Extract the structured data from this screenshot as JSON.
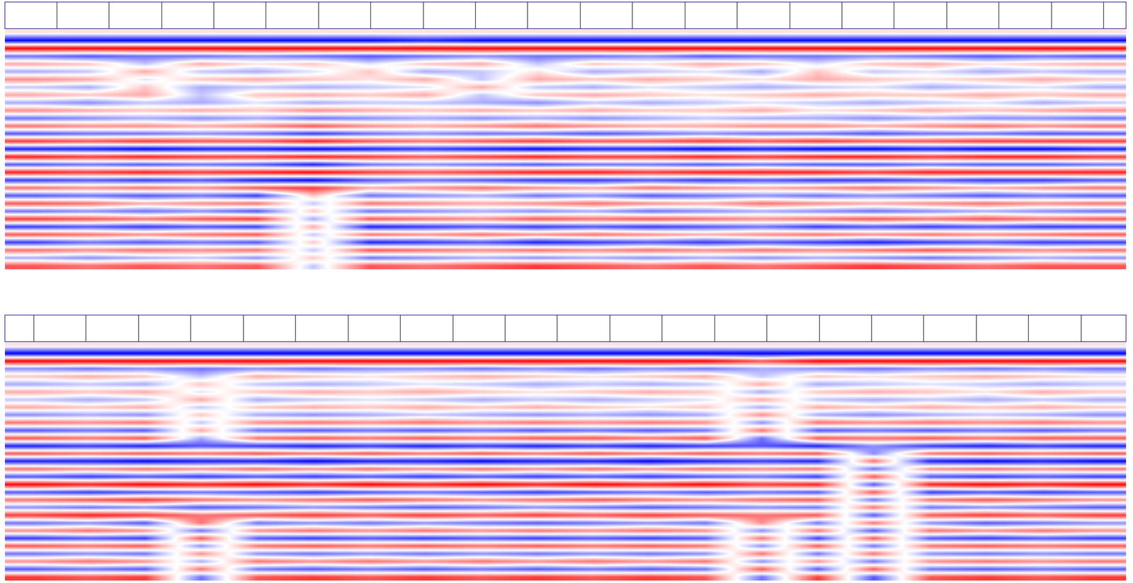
{
  "chart_data": [
    {
      "type": "heatmap",
      "tick_labels": false,
      "xlim": [
        0,
        1551
      ],
      "color_range": [
        -9,
        9
      ],
      "colors": [
        "#0000ff",
        "#ffffff",
        "#ff0000"
      ],
      "markers": [
        72,
        144,
        217,
        289,
        361,
        434,
        506,
        579,
        651,
        723,
        796,
        868,
        941,
        1013,
        1086,
        1158,
        1230,
        1303,
        1375,
        1448,
        1520
      ],
      "z": [
        [
          1,
          1,
          1,
          1,
          1,
          1,
          1,
          1,
          1,
          1,
          1,
          1,
          1,
          1,
          1,
          1,
          1,
          1,
          1,
          1
        ],
        [
          -9,
          -9,
          -9,
          -9,
          -9,
          -9,
          -9,
          -8,
          -9,
          -9,
          -9,
          -9,
          -9,
          -9,
          -9,
          -9,
          -9,
          -9,
          -9,
          -9
        ],
        [
          9,
          9,
          9,
          9,
          9,
          9,
          9,
          9,
          9,
          9,
          9,
          9,
          9,
          9,
          9,
          9,
          9,
          9,
          9,
          9
        ],
        [
          -5,
          -6,
          -5,
          -5,
          -4,
          -5,
          -6,
          -5,
          -4,
          -5,
          -5,
          -4,
          -6,
          -5,
          -5,
          -4,
          -5,
          -6,
          -5,
          -6
        ],
        [
          3,
          2,
          -2,
          3,
          1,
          2,
          -1,
          2,
          3,
          -2,
          2,
          1,
          3,
          2,
          -1,
          2,
          3,
          1,
          2,
          3
        ],
        [
          -3,
          -2,
          3,
          -2,
          -3,
          -1,
          2,
          -3,
          -2,
          1,
          -3,
          -2,
          -1,
          -3,
          2,
          -2,
          -1,
          -3,
          -2,
          -3
        ],
        [
          4,
          3,
          -1,
          2,
          3,
          2,
          1,
          3,
          -2,
          3,
          2,
          3,
          2,
          1,
          3,
          2,
          1,
          2,
          3,
          2
        ],
        [
          -2,
          -3,
          2,
          -3,
          -2,
          -3,
          -2,
          -1,
          3,
          -2,
          -3,
          -1,
          -2,
          -3,
          -2,
          -1,
          -3,
          -2,
          -1,
          -3
        ],
        [
          3,
          2,
          3,
          -2,
          2,
          3,
          2,
          3,
          -2,
          2,
          3,
          2,
          1,
          2,
          3,
          2,
          2,
          3,
          2,
          3
        ],
        [
          -3,
          -4,
          -2,
          -3,
          -1,
          -3,
          -2,
          -2,
          -3,
          -4,
          -2,
          -3,
          -2,
          -1,
          -2,
          -3,
          -2,
          -1,
          -3,
          -2
        ],
        [
          4,
          3,
          2,
          3,
          2,
          4,
          3,
          2,
          3,
          2,
          3,
          2,
          2,
          3,
          1,
          2,
          3,
          2,
          3,
          4
        ],
        [
          -5,
          -4,
          -3,
          -4,
          -3,
          -5,
          -4,
          -3,
          -4,
          -3,
          -4,
          -3,
          -2,
          -3,
          -3,
          -4,
          -3,
          -4,
          -4,
          -5
        ],
        [
          5,
          4,
          4,
          3,
          4,
          6,
          4,
          3,
          4,
          5,
          4,
          3,
          3,
          4,
          4,
          3,
          4,
          5,
          4,
          5
        ],
        [
          -6,
          -5,
          -5,
          -4,
          -5,
          -7,
          -5,
          -4,
          -5,
          -5,
          -6,
          -5,
          -4,
          -5,
          -5,
          -6,
          -5,
          -5,
          -6,
          -6
        ],
        [
          7,
          6,
          7,
          6,
          6,
          8,
          6,
          5,
          6,
          7,
          6,
          6,
          7,
          6,
          7,
          6,
          6,
          7,
          7,
          7
        ],
        [
          -8,
          -8,
          -9,
          -8,
          -8,
          -9,
          -8,
          -7,
          -8,
          -9,
          -8,
          -8,
          -9,
          -8,
          -9,
          -9,
          -8,
          -9,
          -9,
          -8
        ],
        [
          8,
          7,
          8,
          7,
          7,
          8,
          7,
          6,
          7,
          8,
          7,
          7,
          8,
          7,
          8,
          8,
          7,
          8,
          8,
          7
        ],
        [
          -6,
          -5,
          -6,
          -5,
          -6,
          -8,
          -5,
          -4,
          -5,
          -6,
          -5,
          -5,
          -6,
          -5,
          -6,
          -6,
          -5,
          -6,
          -6,
          -5
        ],
        [
          8,
          7,
          8,
          7,
          8,
          9,
          7,
          6,
          7,
          8,
          8,
          7,
          8,
          8,
          8,
          7,
          8,
          8,
          8,
          8
        ],
        [
          -7,
          -6,
          -7,
          -6,
          -8,
          -9,
          -6,
          -5,
          -6,
          -7,
          -7,
          -6,
          -7,
          -6,
          -7,
          -7,
          -6,
          -7,
          -7,
          -6
        ],
        [
          5,
          4,
          5,
          4,
          6,
          7,
          3,
          4,
          5,
          4,
          3,
          5,
          4,
          3,
          4,
          5,
          4,
          3,
          4,
          5
        ],
        [
          -6,
          -5,
          -6,
          -5,
          -7,
          2,
          -5,
          -4,
          -3,
          -5,
          -4,
          -6,
          -5,
          -4,
          -5,
          -4,
          -5,
          -6,
          -5,
          -6
        ],
        [
          6,
          5,
          3,
          4,
          5,
          -2,
          5,
          4,
          3,
          4,
          5,
          4,
          3,
          5,
          4,
          3,
          4,
          5,
          4,
          5
        ],
        [
          -5,
          -4,
          -5,
          -4,
          -6,
          2,
          -5,
          -4,
          -3,
          -4,
          -3,
          -5,
          -4,
          -3,
          -4,
          -5,
          -4,
          -3,
          -4,
          -5
        ],
        [
          7,
          6,
          5,
          6,
          7,
          -3,
          6,
          5,
          4,
          6,
          5,
          6,
          5,
          4,
          5,
          6,
          5,
          6,
          5,
          6
        ],
        [
          -7,
          -6,
          -7,
          -6,
          -7,
          3,
          -8,
          -7,
          -6,
          -7,
          -6,
          -7,
          -6,
          -5,
          -7,
          -6,
          -7,
          -6,
          -7,
          -7
        ],
        [
          6,
          5,
          4,
          5,
          6,
          -2,
          5,
          4,
          5,
          4,
          5,
          4,
          3,
          4,
          5,
          4,
          5,
          4,
          5,
          6
        ],
        [
          -7,
          -5,
          -6,
          -5,
          -6,
          2,
          -8,
          -7,
          -6,
          -8,
          -7,
          -6,
          -7,
          -6,
          -7,
          -8,
          -7,
          -6,
          -7,
          -7
        ],
        [
          5,
          4,
          5,
          4,
          5,
          -2,
          6,
          5,
          4,
          5,
          4,
          5,
          4,
          5,
          4,
          5,
          6,
          5,
          4,
          5
        ],
        [
          -3,
          -4,
          -3,
          -2,
          -4,
          2,
          -5,
          -4,
          -3,
          -4,
          -3,
          -4,
          -3,
          -4,
          -3,
          -4,
          -5,
          -4,
          -3,
          -4
        ],
        [
          6,
          5,
          6,
          5,
          6,
          -2,
          6,
          5,
          6,
          7,
          6,
          5,
          6,
          5,
          6,
          7,
          6,
          5,
          6,
          6
        ]
      ]
    },
    {
      "type": "heatmap",
      "tick_labels": false,
      "xlim": [
        0,
        1551
      ],
      "color_range": [
        -9,
        9
      ],
      "colors": [
        "#0000ff",
        "#ffffff",
        "#ff0000"
      ],
      "markers": [
        40,
        112,
        185,
        257,
        330,
        402,
        475,
        547,
        620,
        692,
        764,
        837,
        909,
        982,
        1054,
        1127,
        1199,
        1271,
        1344,
        1416,
        1489
      ],
      "z": [
        [
          1,
          1,
          1,
          1,
          1,
          1,
          1,
          1,
          1,
          1,
          1,
          1,
          1,
          1,
          1,
          1,
          1,
          1,
          1,
          1
        ],
        [
          -9,
          -9,
          -9,
          -9,
          -9,
          -9,
          -9,
          -9,
          -9,
          -9,
          -9,
          -9,
          -9,
          -9,
          -9,
          -9,
          -9,
          -9,
          -9,
          -9
        ],
        [
          9,
          9,
          9,
          9,
          9,
          9,
          9,
          9,
          9,
          9,
          9,
          9,
          9,
          6,
          9,
          9,
          9,
          9,
          9,
          9
        ],
        [
          -4,
          -5,
          -4,
          -5,
          -4,
          -5,
          -4,
          -4,
          -5,
          -4,
          -5,
          -4,
          -5,
          -3,
          -4,
          -5,
          -4,
          -5,
          -4,
          -5
        ],
        [
          2,
          3,
          2,
          -2,
          3,
          2,
          1,
          2,
          3,
          2,
          1,
          2,
          3,
          -2,
          2,
          1,
          2,
          3,
          2,
          1
        ],
        [
          -3,
          -2,
          -3,
          2,
          -2,
          -3,
          -2,
          -1,
          -2,
          -3,
          -2,
          -3,
          -2,
          3,
          -3,
          -2,
          -1,
          -2,
          -3,
          -2
        ],
        [
          3,
          2,
          3,
          -1,
          2,
          3,
          2,
          3,
          2,
          1,
          2,
          3,
          2,
          -3,
          2,
          3,
          2,
          1,
          3,
          2
        ],
        [
          -2,
          -3,
          -2,
          3,
          -3,
          -2,
          -1,
          -2,
          -3,
          -2,
          -3,
          -2,
          -1,
          3,
          -2,
          -3,
          -2,
          -3,
          -2,
          -3
        ],
        [
          3,
          2,
          3,
          -2,
          2,
          3,
          2,
          3,
          2,
          3,
          2,
          1,
          2,
          -3,
          3,
          2,
          3,
          2,
          3,
          2
        ],
        [
          -4,
          -3,
          -4,
          2,
          -3,
          -4,
          -3,
          -2,
          -3,
          -4,
          -3,
          -4,
          -3,
          4,
          -3,
          -4,
          -3,
          -2,
          -3,
          -4
        ],
        [
          5,
          4,
          5,
          -2,
          4,
          5,
          4,
          5,
          4,
          5,
          4,
          5,
          4,
          -4,
          5,
          4,
          5,
          4,
          5,
          4
        ],
        [
          -6,
          -5,
          -6,
          3,
          -5,
          -6,
          -5,
          -6,
          -5,
          -6,
          -5,
          -6,
          -5,
          5,
          -6,
          -5,
          -6,
          -5,
          -6,
          -5
        ],
        [
          6,
          5,
          6,
          -3,
          5,
          6,
          5,
          6,
          5,
          6,
          6,
          5,
          6,
          -5,
          6,
          5,
          6,
          5,
          6,
          6
        ],
        [
          -8,
          -7,
          -8,
          -6,
          -7,
          -8,
          -7,
          -8,
          -7,
          -8,
          -7,
          -8,
          -7,
          -6,
          -8,
          -4,
          -7,
          -8,
          -7,
          -8
        ],
        [
          6,
          5,
          6,
          5,
          6,
          5,
          6,
          5,
          6,
          5,
          6,
          5,
          6,
          5,
          6,
          -4,
          5,
          6,
          5,
          6
        ],
        [
          -8,
          -8,
          -9,
          -8,
          -8,
          -9,
          -8,
          -8,
          -9,
          -8,
          -8,
          -9,
          -8,
          -7,
          -8,
          5,
          -8,
          -9,
          -8,
          -9
        ],
        [
          5,
          4,
          5,
          4,
          5,
          4,
          5,
          4,
          5,
          4,
          5,
          4,
          5,
          4,
          5,
          -5,
          4,
          5,
          4,
          5
        ],
        [
          -6,
          -7,
          -6,
          -7,
          -6,
          -7,
          -6,
          -7,
          -6,
          -7,
          -6,
          -7,
          -6,
          -5,
          -7,
          6,
          -6,
          -7,
          -6,
          -7
        ],
        [
          9,
          8,
          9,
          8,
          9,
          8,
          9,
          8,
          9,
          8,
          9,
          8,
          9,
          7,
          8,
          -6,
          8,
          9,
          8,
          9
        ],
        [
          -6,
          -7,
          -6,
          -5,
          -6,
          -7,
          -6,
          -5,
          -6,
          -7,
          -6,
          -5,
          -6,
          -5,
          -6,
          6,
          -7,
          -6,
          -7,
          -6
        ],
        [
          5,
          6,
          7,
          5,
          4,
          5,
          6,
          5,
          4,
          5,
          6,
          5,
          4,
          5,
          6,
          -5,
          5,
          6,
          5,
          4
        ],
        [
          -4,
          -5,
          -4,
          -6,
          -5,
          -4,
          -5,
          -6,
          -5,
          -4,
          -5,
          -6,
          -5,
          -4,
          -5,
          5,
          -5,
          -4,
          -5,
          -6
        ],
        [
          7,
          8,
          7,
          5,
          6,
          7,
          6,
          7,
          6,
          7,
          6,
          7,
          6,
          5,
          6,
          -6,
          6,
          7,
          6,
          7
        ],
        [
          -5,
          -4,
          -6,
          5,
          -5,
          -4,
          -5,
          -4,
          -5,
          -6,
          -5,
          -4,
          -5,
          4,
          -5,
          5,
          -4,
          -6,
          -5,
          -4
        ],
        [
          4,
          5,
          4,
          -5,
          4,
          5,
          4,
          5,
          4,
          5,
          4,
          5,
          4,
          -4,
          5,
          -6,
          5,
          4,
          5,
          4
        ],
        [
          -7,
          -6,
          -7,
          6,
          -6,
          -7,
          -6,
          -7,
          -6,
          -7,
          -6,
          -7,
          -6,
          5,
          -7,
          6,
          -6,
          -7,
          -6,
          -7
        ],
        [
          6,
          5,
          6,
          -4,
          5,
          6,
          5,
          6,
          5,
          6,
          5,
          6,
          5,
          -4,
          6,
          -5,
          5,
          6,
          5,
          6
        ],
        [
          -5,
          -4,
          -5,
          4,
          -4,
          -5,
          -4,
          -5,
          -4,
          -5,
          -4,
          -5,
          -4,
          5,
          -5,
          5,
          -4,
          -5,
          -4,
          -5
        ],
        [
          4,
          5,
          4,
          -3,
          5,
          4,
          5,
          4,
          5,
          4,
          5,
          4,
          5,
          -4,
          4,
          -5,
          4,
          5,
          4,
          5
        ],
        [
          -6,
          -5,
          -6,
          5,
          -5,
          -6,
          -5,
          -6,
          -5,
          -6,
          -5,
          -6,
          -5,
          6,
          -6,
          6,
          -5,
          -6,
          -5,
          -6
        ],
        [
          7,
          6,
          7,
          -5,
          6,
          7,
          6,
          7,
          6,
          7,
          6,
          7,
          6,
          -5,
          7,
          -6,
          6,
          7,
          6,
          7
        ]
      ]
    }
  ]
}
